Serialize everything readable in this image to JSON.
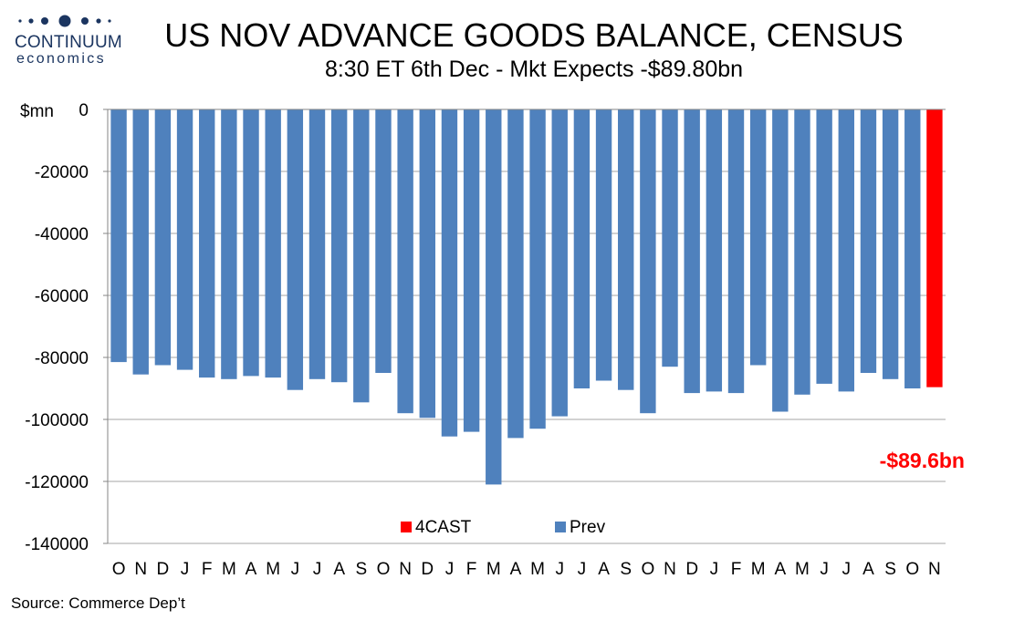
{
  "logo": {
    "brand": "CONTINUUM",
    "sub": "economics"
  },
  "header": {
    "title": "US NOV ADVANCE GOODS BALANCE, CENSUS",
    "subtitle": "8:30 ET 6th Dec - Mkt Expects -$89.80bn"
  },
  "footer": {
    "source": "Source: Commerce Dep’t"
  },
  "colors": {
    "prev": "#4f81bd",
    "forecast": "#ff0000",
    "logo": "#1b3560"
  },
  "chart_data": {
    "type": "bar",
    "ylabel": "$mn",
    "ylim": [
      -140000,
      0
    ],
    "yticks": [
      0,
      -20000,
      -40000,
      -60000,
      -80000,
      -100000,
      -120000,
      -140000
    ],
    "grid": true,
    "legend_position": "bottom-center",
    "legend": [
      "4CAST",
      "Prev"
    ],
    "categories": [
      "O",
      "N",
      "D",
      "J",
      "F",
      "M",
      "A",
      "M",
      "J",
      "J",
      "A",
      "S",
      "O",
      "N",
      "D",
      "J",
      "F",
      "M",
      "A",
      "M",
      "J",
      "J",
      "A",
      "S",
      "O",
      "N",
      "D",
      "J",
      "F",
      "M",
      "A",
      "M",
      "J",
      "J",
      "A",
      "S",
      "O",
      "N"
    ],
    "series": [
      {
        "name": "Prev",
        "values": [
          -81500,
          -85500,
          -82500,
          -84000,
          -86500,
          -87000,
          -86000,
          -86500,
          -90500,
          -87000,
          -88000,
          -94500,
          -85000,
          -98000,
          -99500,
          -105500,
          -104000,
          -121000,
          -106000,
          -103000,
          -99000,
          -90000,
          -87500,
          -90500,
          -98000,
          -83000,
          -91500,
          -91000,
          -91500,
          -82500,
          -97500,
          -92000,
          -88500,
          -91000,
          -85000,
          -87000,
          -90000,
          null
        ]
      },
      {
        "name": "4CAST",
        "values": [
          null,
          null,
          null,
          null,
          null,
          null,
          null,
          null,
          null,
          null,
          null,
          null,
          null,
          null,
          null,
          null,
          null,
          null,
          null,
          null,
          null,
          null,
          null,
          null,
          null,
          null,
          null,
          null,
          null,
          null,
          null,
          null,
          null,
          null,
          null,
          null,
          null,
          -89600
        ]
      }
    ],
    "annotation": "-$89.6bn"
  }
}
